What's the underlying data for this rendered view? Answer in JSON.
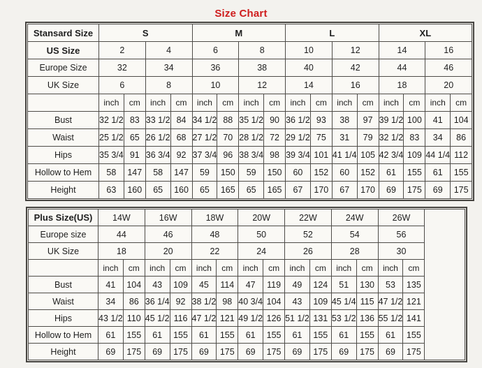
{
  "title": "Size Chart",
  "title_color": "#cf1d1d",
  "standard_table": {
    "header_label": "Stansard Size",
    "size_groups": [
      "S",
      "M",
      "L",
      "XL"
    ],
    "us_size_label": "US Size",
    "us_sizes": [
      "2",
      "4",
      "6",
      "8",
      "10",
      "12",
      "14",
      "16"
    ],
    "europe_size_label": "Europe Size",
    "europe_sizes": [
      "32",
      "34",
      "36",
      "38",
      "40",
      "42",
      "44",
      "46"
    ],
    "uk_size_label": "UK Size",
    "uk_sizes": [
      "6",
      "8",
      "10",
      "12",
      "14",
      "16",
      "18",
      "20"
    ],
    "unit_labels": [
      "inch",
      "cm"
    ],
    "measurement_rows": [
      {
        "label": "Bust",
        "values": [
          "32 1/2",
          "83",
          "33 1/2",
          "84",
          "34 1/2",
          "88",
          "35 1/2",
          "90",
          "36 1/2",
          "93",
          "38",
          "97",
          "39 1/2",
          "100",
          "41",
          "104"
        ]
      },
      {
        "label": "Waist",
        "values": [
          "25 1/2",
          "65",
          "26 1/2",
          "68",
          "27 1/2",
          "70",
          "28 1/2",
          "72",
          "29 1/2",
          "75",
          "31",
          "79",
          "32 1/2",
          "83",
          "34",
          "86"
        ]
      },
      {
        "label": "Hips",
        "values": [
          "35 3/4",
          "91",
          "36 3/4",
          "92",
          "37 3/4",
          "96",
          "38 3/4",
          "98",
          "39 3/4",
          "101",
          "41 1/4",
          "105",
          "42 3/4",
          "109",
          "44 1/4",
          "112"
        ]
      },
      {
        "label": "Hollow to Hem",
        "values": [
          "58",
          "147",
          "58",
          "147",
          "59",
          "150",
          "59",
          "150",
          "60",
          "152",
          "60",
          "152",
          "61",
          "155",
          "61",
          "155"
        ]
      },
      {
        "label": "Height",
        "values": [
          "63",
          "160",
          "65",
          "160",
          "65",
          "165",
          "65",
          "165",
          "67",
          "170",
          "67",
          "170",
          "69",
          "175",
          "69",
          "175"
        ]
      }
    ]
  },
  "plus_table": {
    "header_label": "Plus Size(US)",
    "plus_sizes": [
      "14W",
      "16W",
      "18W",
      "20W",
      "22W",
      "24W",
      "26W"
    ],
    "europe_size_label": "Europe size",
    "europe_sizes": [
      "44",
      "46",
      "48",
      "50",
      "52",
      "54",
      "56"
    ],
    "uk_size_label": "UK Size",
    "uk_sizes": [
      "18",
      "20",
      "22",
      "24",
      "26",
      "28",
      "30"
    ],
    "unit_labels": [
      "inch",
      "cm"
    ],
    "measurement_rows": [
      {
        "label": "Bust",
        "values": [
          "41",
          "104",
          "43",
          "109",
          "45",
          "114",
          "47",
          "119",
          "49",
          "124",
          "51",
          "130",
          "53",
          "135"
        ]
      },
      {
        "label": "Waist",
        "values": [
          "34",
          "86",
          "36 1/4",
          "92",
          "38 1/2",
          "98",
          "40 3/4",
          "104",
          "43",
          "109",
          "45 1/4",
          "115",
          "47 1/2",
          "121"
        ]
      },
      {
        "label": "Hips",
        "values": [
          "43 1/2",
          "110",
          "45 1/2",
          "116",
          "47 1/2",
          "121",
          "49 1/2",
          "126",
          "51 1/2",
          "131",
          "53 1/2",
          "136",
          "55 1/2",
          "141"
        ]
      },
      {
        "label": "Hollow to Hem",
        "values": [
          "61",
          "155",
          "61",
          "155",
          "61",
          "155",
          "61",
          "155",
          "61",
          "155",
          "61",
          "155",
          "61",
          "155"
        ]
      },
      {
        "label": "Height",
        "values": [
          "69",
          "175",
          "69",
          "175",
          "69",
          "175",
          "69",
          "175",
          "69",
          "175",
          "69",
          "175",
          "69",
          "175"
        ]
      }
    ]
  }
}
